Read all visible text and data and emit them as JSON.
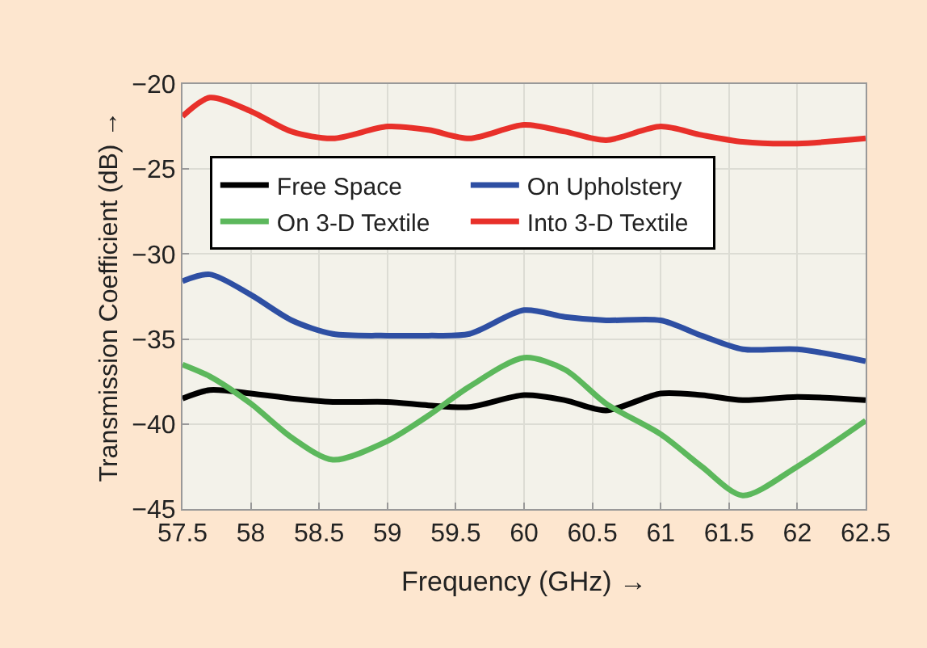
{
  "chart_data": {
    "type": "line",
    "xlabel": "Frequency (GHz) →",
    "ylabel": "Transmission Coefficient (dB) →",
    "x": [
      57.5,
      57.7,
      58.0,
      58.3,
      58.6,
      59.0,
      59.3,
      59.6,
      60.0,
      60.3,
      60.6,
      61.0,
      61.3,
      61.6,
      62.0,
      62.5
    ],
    "series": [
      {
        "name": "Free Space",
        "color": "#000000",
        "values": [
          -38.5,
          -38.0,
          -38.2,
          -38.5,
          -38.7,
          -38.7,
          -38.9,
          -39.0,
          -38.3,
          -38.6,
          -39.2,
          -38.2,
          -38.3,
          -38.6,
          -38.4,
          -38.6
        ]
      },
      {
        "name": "On Upholstery",
        "color": "#2e4fa3",
        "values": [
          -31.6,
          -31.2,
          -32.4,
          -33.9,
          -34.7,
          -34.8,
          -34.8,
          -34.7,
          -33.3,
          -33.7,
          -33.9,
          -33.9,
          -34.8,
          -35.6,
          -35.6,
          -36.3
        ]
      },
      {
        "name": "On 3-D Textile",
        "color": "#5cb85c",
        "values": [
          -36.5,
          -37.2,
          -38.8,
          -40.8,
          -42.1,
          -41.0,
          -39.5,
          -37.8,
          -36.1,
          -36.8,
          -38.8,
          -40.6,
          -42.5,
          -44.2,
          -42.5,
          -39.8
        ]
      },
      {
        "name": "Into 3-D Textile",
        "color": "#e8302a",
        "values": [
          -21.9,
          -20.8,
          -21.6,
          -22.8,
          -23.2,
          -22.5,
          -22.7,
          -23.2,
          -22.4,
          -22.8,
          -23.3,
          -22.5,
          -23.0,
          -23.4,
          -23.5,
          -23.2
        ]
      }
    ],
    "xlim": [
      57.5,
      62.5
    ],
    "xticks": [
      57.5,
      58,
      58.5,
      59,
      59.5,
      60,
      60.5,
      61,
      61.5,
      62,
      62.5
    ],
    "ylim": [
      -45,
      -20
    ],
    "yticks": [
      -45,
      -40,
      -35,
      -30,
      -25,
      -20
    ],
    "grid": true,
    "legend": "top",
    "marker": "none",
    "line_style": "solid"
  }
}
